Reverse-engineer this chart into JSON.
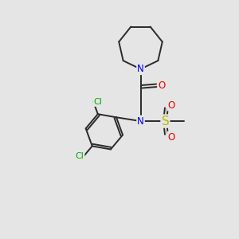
{
  "background_color": "#e5e5e5",
  "bond_color": "#2a2a2a",
  "N_color": "#0000ee",
  "O_color": "#ee0000",
  "S_color": "#bbbb00",
  "Cl_color": "#00aa00",
  "figsize": [
    3.0,
    3.0
  ],
  "dpi": 100,
  "xlim": [
    0,
    10
  ],
  "ylim": [
    0,
    10
  ]
}
